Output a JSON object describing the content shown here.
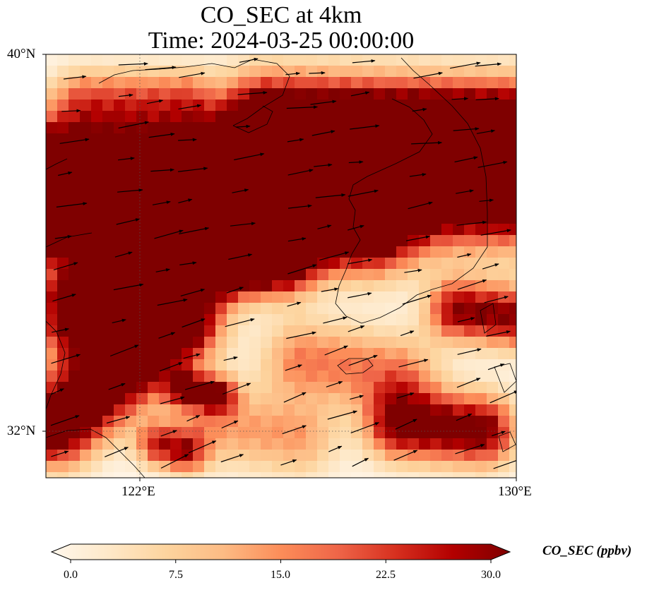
{
  "title_line1": "CO_SEC at 4km",
  "title_line2": "Time: 2024-03-25 00:00:00",
  "axes": {
    "lat_labels": [
      "40°N",
      "32°N"
    ],
    "lon_labels": [
      "122°E",
      "130°E"
    ]
  },
  "map_extent": {
    "lon_min": 120.0,
    "lon_max": 130.0,
    "lat_min": 31.0,
    "lat_max": 40.0
  },
  "gridlines": {
    "lons": [
      122,
      130
    ],
    "lats": [
      40,
      32
    ],
    "style": "dotted"
  },
  "colormap": {
    "name": "OrRd",
    "stops": [
      "#fff7ec",
      "#fee8c8",
      "#fdd49e",
      "#fdbb84",
      "#fc8d59",
      "#ef6548",
      "#d7301f",
      "#b30000",
      "#7f0000"
    ],
    "extend": "both"
  },
  "colorbar": {
    "label": "CO_SEC (ppbv)",
    "min": 0.0,
    "max": 30.0,
    "ticks": [
      "0.0",
      "7.5",
      "15.0",
      "22.5",
      "30.0"
    ],
    "tick_values": [
      0.0,
      7.5,
      15.0,
      22.5,
      30.0
    ]
  },
  "wind_vectors": {
    "description_color": "#000000",
    "style": "arrow"
  },
  "colors": {
    "coastline": "#000000",
    "background": "#ffffff"
  }
}
